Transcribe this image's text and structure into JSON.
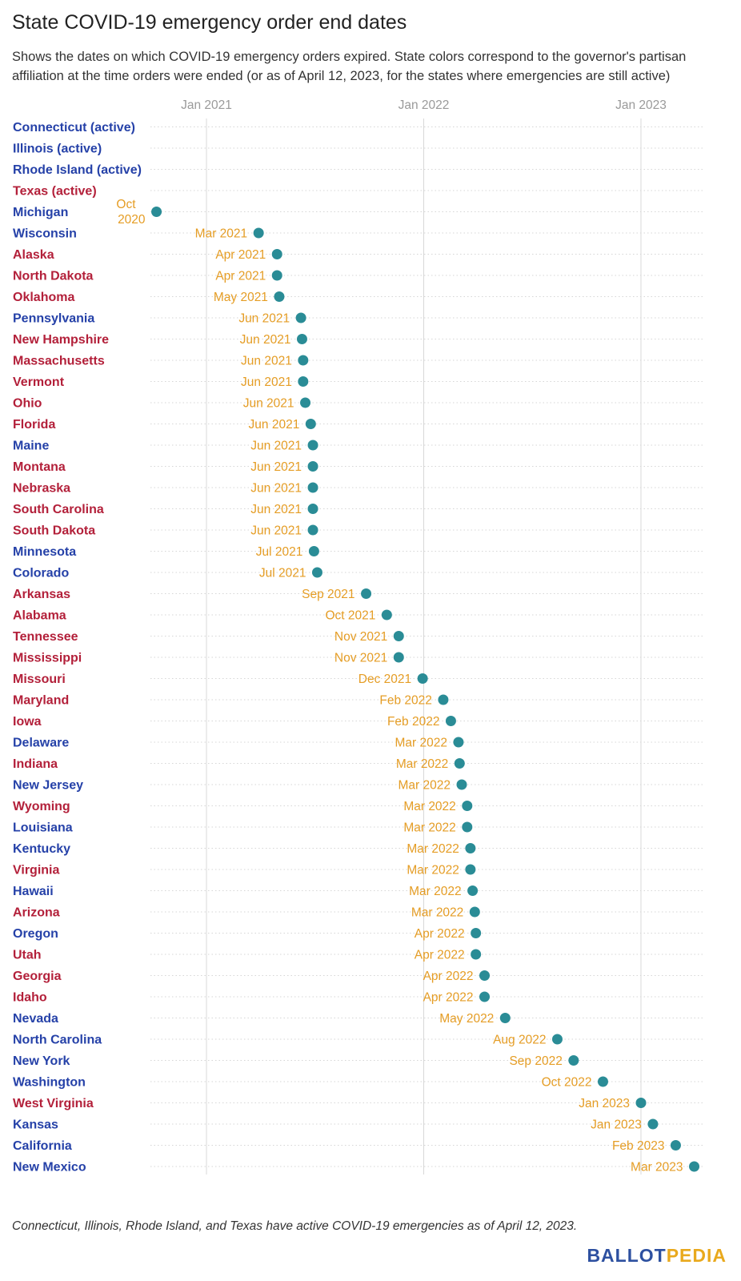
{
  "title": "State COVID-19 emergency order end dates",
  "subtitle": "Shows the dates on which COVID-19 emergency orders expired. State colors correspond to the governor's partisan affiliation at the time orders were ended (or as of April 12, 2023, for the states where emergencies are still active)",
  "footnote": "Connecticut, Illinois, Rhode Island, and Texas have active COVID-19 emergencies as of April 12, 2023.",
  "logo": {
    "part1": "BALLOT",
    "part2": "PEDIA"
  },
  "colors": {
    "democrat": "#2541a8",
    "republican": "#b3203a",
    "dot": "#2a8c96",
    "date_label": "#e59d25",
    "gridline": "#d8d8d8",
    "tick": "#9a9a9a"
  },
  "chart_data": {
    "type": "scatter",
    "title": "State COVID-19 emergency order end dates",
    "x_axis": {
      "ticks": [
        {
          "label": "Jan 2021",
          "value": 2021.0
        },
        {
          "label": "Jan 2022",
          "value": 2022.0
        },
        {
          "label": "Jan 2023",
          "value": 2023.0
        }
      ],
      "range": [
        2020.74,
        2023.28
      ]
    },
    "rows": [
      {
        "state": "Connecticut (active)",
        "party": "D",
        "label": "",
        "value": null
      },
      {
        "state": "Illinois (active)",
        "party": "D",
        "label": "",
        "value": null
      },
      {
        "state": "Rhode Island (active)",
        "party": "D",
        "label": "",
        "value": null
      },
      {
        "state": "Texas (active)",
        "party": "R",
        "label": "",
        "value": null
      },
      {
        "state": "Michigan",
        "party": "D",
        "label": "Oct 2020",
        "value": 2020.77
      },
      {
        "state": "Wisconsin",
        "party": "D",
        "label": "Mar 2021",
        "value": 2021.24
      },
      {
        "state": "Alaska",
        "party": "R",
        "label": "Apr 2021",
        "value": 2021.325
      },
      {
        "state": "North Dakota",
        "party": "R",
        "label": "Apr 2021",
        "value": 2021.325
      },
      {
        "state": "Oklahoma",
        "party": "R",
        "label": "May 2021",
        "value": 2021.335
      },
      {
        "state": "Pennsylvania",
        "party": "D",
        "label": "Jun 2021",
        "value": 2021.435
      },
      {
        "state": "New Hampshire",
        "party": "R",
        "label": "Jun 2021",
        "value": 2021.44
      },
      {
        "state": "Massachusetts",
        "party": "R",
        "label": "Jun 2021",
        "value": 2021.445
      },
      {
        "state": "Vermont",
        "party": "R",
        "label": "Jun 2021",
        "value": 2021.445
      },
      {
        "state": "Ohio",
        "party": "R",
        "label": "Jun 2021",
        "value": 2021.455
      },
      {
        "state": "Florida",
        "party": "R",
        "label": "Jun 2021",
        "value": 2021.48
      },
      {
        "state": "Maine",
        "party": "D",
        "label": "Jun 2021",
        "value": 2021.49
      },
      {
        "state": "Montana",
        "party": "R",
        "label": "Jun 2021",
        "value": 2021.49
      },
      {
        "state": "Nebraska",
        "party": "R",
        "label": "Jun 2021",
        "value": 2021.49
      },
      {
        "state": "South Carolina",
        "party": "R",
        "label": "Jun 2021",
        "value": 2021.49
      },
      {
        "state": "South Dakota",
        "party": "R",
        "label": "Jun 2021",
        "value": 2021.49
      },
      {
        "state": "Minnesota",
        "party": "D",
        "label": "Jul 2021",
        "value": 2021.495
      },
      {
        "state": "Colorado",
        "party": "D",
        "label": "Jul 2021",
        "value": 2021.51
      },
      {
        "state": "Arkansas",
        "party": "R",
        "label": "Sep 2021",
        "value": 2021.735
      },
      {
        "state": "Alabama",
        "party": "R",
        "label": "Oct 2021",
        "value": 2021.83
      },
      {
        "state": "Tennessee",
        "party": "R",
        "label": "Nov 2021",
        "value": 2021.885
      },
      {
        "state": "Mississippi",
        "party": "R",
        "label": "Nov 2021",
        "value": 2021.885
      },
      {
        "state": "Missouri",
        "party": "R",
        "label": "Dec 2021",
        "value": 2021.995
      },
      {
        "state": "Maryland",
        "party": "R",
        "label": "Feb 2022",
        "value": 2022.09
      },
      {
        "state": "Iowa",
        "party": "R",
        "label": "Feb 2022",
        "value": 2022.125
      },
      {
        "state": "Delaware",
        "party": "D",
        "label": "Mar 2022",
        "value": 2022.16
      },
      {
        "state": "Indiana",
        "party": "R",
        "label": "Mar 2022",
        "value": 2022.165
      },
      {
        "state": "New Jersey",
        "party": "D",
        "label": "Mar 2022",
        "value": 2022.175
      },
      {
        "state": "Wyoming",
        "party": "R",
        "label": "Mar 2022",
        "value": 2022.2
      },
      {
        "state": "Louisiana",
        "party": "D",
        "label": "Mar 2022",
        "value": 2022.2
      },
      {
        "state": "Kentucky",
        "party": "D",
        "label": "Mar 2022",
        "value": 2022.215
      },
      {
        "state": "Virginia",
        "party": "R",
        "label": "Mar 2022",
        "value": 2022.215
      },
      {
        "state": "Hawaii",
        "party": "D",
        "label": "Mar 2022",
        "value": 2022.225
      },
      {
        "state": "Arizona",
        "party": "R",
        "label": "Mar 2022",
        "value": 2022.235
      },
      {
        "state": "Oregon",
        "party": "D",
        "label": "Apr 2022",
        "value": 2022.24
      },
      {
        "state": "Utah",
        "party": "R",
        "label": "Apr 2022",
        "value": 2022.24
      },
      {
        "state": "Georgia",
        "party": "R",
        "label": "Apr 2022",
        "value": 2022.28
      },
      {
        "state": "Idaho",
        "party": "R",
        "label": "Apr 2022",
        "value": 2022.28
      },
      {
        "state": "Nevada",
        "party": "D",
        "label": "May 2022",
        "value": 2022.375
      },
      {
        "state": "North Carolina",
        "party": "D",
        "label": "Aug 2022",
        "value": 2022.615
      },
      {
        "state": "New York",
        "party": "D",
        "label": "Sep 2022",
        "value": 2022.69
      },
      {
        "state": "Washington",
        "party": "D",
        "label": "Oct 2022",
        "value": 2022.825
      },
      {
        "state": "West Virginia",
        "party": "R",
        "label": "Jan 2023",
        "value": 2023.0
      },
      {
        "state": "Kansas",
        "party": "D",
        "label": "Jan 2023",
        "value": 2023.055
      },
      {
        "state": "California",
        "party": "D",
        "label": "Feb 2023",
        "value": 2023.16
      },
      {
        "state": "New Mexico",
        "party": "D",
        "label": "Mar 2023",
        "value": 2023.245
      }
    ]
  }
}
